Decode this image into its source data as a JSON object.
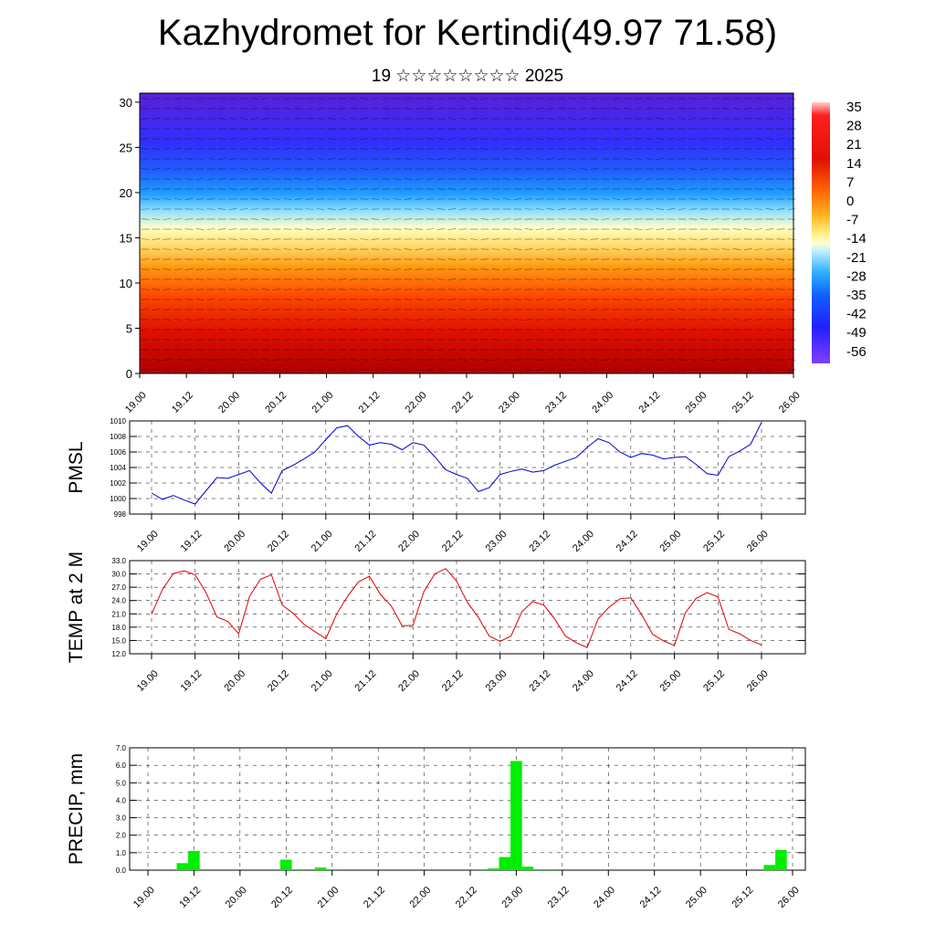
{
  "title": "Kazhydromet for Kertindi(49.97 71.58)",
  "subtitle": "19 ☆☆☆☆☆☆☆☆ 2025",
  "colors": {
    "pmsl_line": "#0000cc",
    "temp_line": "#dd0000",
    "precip_bar": "#00ee00"
  },
  "chart_data": [
    {
      "type": "heatmap",
      "title": "",
      "ylabel": "",
      "x_tick_labels": [
        "19.00",
        "19.12",
        "20.00",
        "20.12",
        "21.00",
        "21.12",
        "22.00",
        "22.12",
        "23.00",
        "23.12",
        "24.00",
        "24.12",
        "25.00",
        "25.12",
        "26.00"
      ],
      "y_ticks": [
        0,
        5,
        10,
        15,
        20,
        25,
        30
      ],
      "ylim": [
        0,
        31
      ],
      "colorbar_labels": [
        "35",
        "28",
        "21",
        "14",
        "7",
        "0",
        "-7",
        "-14",
        "-21",
        "-28",
        "-35",
        "-42",
        "-49",
        "-56"
      ],
      "overlay": "wind barbs",
      "description_of_values": "temperature by level: warm (>14) below ~14, cold (<-42) above ~22"
    },
    {
      "type": "line",
      "ylabel": "PMSL",
      "ylim": [
        998,
        1010
      ],
      "y_tick_labels": [
        "998",
        "1000",
        "1002",
        "1004",
        "1006",
        "1008",
        "1010"
      ],
      "y_ticks": [
        998,
        1000,
        1002,
        1004,
        1006,
        1008,
        1010
      ],
      "x_tick_labels": [
        "19.00",
        "19.12",
        "20.00",
        "20.12",
        "21.00",
        "21.12",
        "22.00",
        "22.12",
        "23.00",
        "23.12",
        "24.00",
        "24.12",
        "25.00",
        "25.12",
        "26.00"
      ],
      "x_step_hours": 3,
      "values": [
        1000.7,
        999.9,
        1000.4,
        999.8,
        999.3,
        1001.0,
        1002.7,
        1002.6,
        1003.1,
        1003.6,
        1002.0,
        1000.7,
        1003.6,
        1004.3,
        1005.1,
        1006.0,
        1007.6,
        1009.1,
        1009.4,
        1008.0,
        1006.9,
        1007.2,
        1007.0,
        1006.3,
        1007.2,
        1006.9,
        1005.4,
        1003.7,
        1003.1,
        1002.6,
        1000.9,
        1001.4,
        1003.1,
        1003.5,
        1003.8,
        1003.4,
        1003.6,
        1004.3,
        1004.8,
        1005.3,
        1006.6,
        1007.7,
        1007.2,
        1006.0,
        1005.3,
        1005.8,
        1005.6,
        1005.1,
        1005.3,
        1005.4,
        1004.4,
        1003.2,
        1003.0,
        1005.4,
        1006.1,
        1007.0,
        1009.8
      ]
    },
    {
      "type": "line",
      "ylabel": "TEMP at 2 M",
      "ylim": [
        12,
        33
      ],
      "y_tick_labels": [
        "12.0",
        "15.0",
        "18.0",
        "21.0",
        "24.0",
        "27.0",
        "30.0",
        "33.0"
      ],
      "y_ticks": [
        12,
        15,
        18,
        21,
        24,
        27,
        30,
        33
      ],
      "x_tick_labels": [
        "19.00",
        "19.12",
        "20.00",
        "20.12",
        "21.00",
        "21.12",
        "22.00",
        "22.12",
        "23.00",
        "23.12",
        "24.00",
        "24.12",
        "25.00",
        "25.12",
        "26.00"
      ],
      "x_step_hours": 3,
      "values": [
        20.9,
        26.5,
        30.1,
        30.7,
        29.8,
        25.8,
        20.3,
        19.3,
        16.5,
        25.0,
        28.8,
        29.8,
        23.0,
        21.1,
        18.6,
        17.0,
        15.4,
        21.0,
        25.0,
        28.2,
        29.5,
        25.4,
        22.8,
        18.3,
        18.4,
        26.0,
        30.0,
        31.2,
        28.4,
        23.6,
        20.2,
        16.0,
        14.8,
        16.0,
        21.5,
        23.8,
        23.0,
        19.9,
        16.0,
        14.5,
        13.4,
        19.9,
        22.5,
        24.4,
        24.6,
        20.8,
        16.4,
        14.9,
        13.9,
        21.2,
        24.5,
        25.8,
        24.8,
        17.5,
        16.5,
        15.0,
        14.0
      ]
    },
    {
      "type": "bar",
      "ylabel": "PRECIP, mm",
      "ylim": [
        0,
        7
      ],
      "y_tick_labels": [
        "0.0",
        "1.0",
        "2.0",
        "3.0",
        "4.0",
        "5.0",
        "6.0",
        "7.0"
      ],
      "y_ticks": [
        0,
        1,
        2,
        3,
        4,
        5,
        6,
        7
      ],
      "x_tick_labels": [
        "19.00",
        "19.12",
        "20.00",
        "20.12",
        "21.00",
        "21.12",
        "22.00",
        "22.12",
        "23.00",
        "23.12",
        "24.00",
        "24.12",
        "25.00",
        "25.12",
        "26.00"
      ],
      "x_step_hours": 3,
      "values": [
        0,
        0,
        0,
        0.4,
        1.1,
        0,
        0,
        0,
        0,
        0,
        0,
        0,
        0.6,
        0.05,
        0,
        0.15,
        0.05,
        0,
        0,
        0,
        0,
        0,
        0,
        0,
        0,
        0,
        0,
        0,
        0,
        0.05,
        0.1,
        0.75,
        6.25,
        0.2,
        0.05,
        0.05,
        0,
        0,
        0,
        0,
        0,
        0,
        0,
        0,
        0,
        0,
        0,
        0,
        0,
        0,
        0,
        0,
        0,
        0,
        0.3,
        1.15,
        0
      ]
    }
  ]
}
